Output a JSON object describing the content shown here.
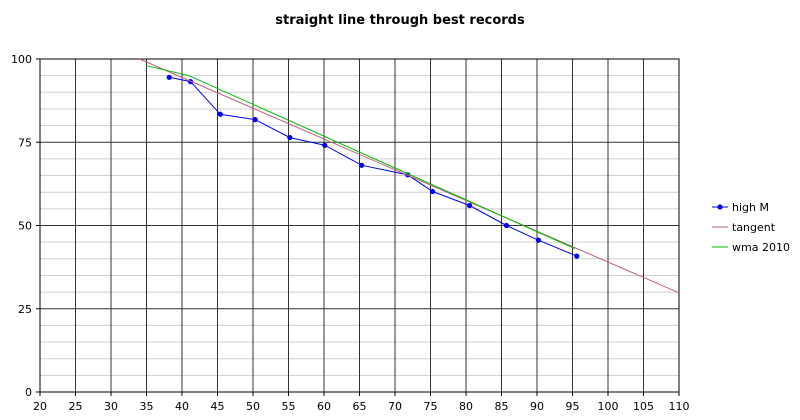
{
  "chart_data": {
    "type": "line",
    "title": "straight line through best records",
    "xlabel": "",
    "ylabel": "",
    "xlim": [
      20,
      110
    ],
    "ylim": [
      0,
      100
    ],
    "x_ticks": [
      20,
      25,
      30,
      35,
      40,
      45,
      50,
      55,
      60,
      65,
      70,
      75,
      80,
      85,
      90,
      95,
      100,
      105,
      110
    ],
    "y_ticks": [
      0,
      25,
      50,
      75,
      100
    ],
    "y_minor_step": 5,
    "grid": true,
    "legend_position": "right",
    "series": [
      {
        "name": "high M",
        "color": "#0000ee",
        "marker": "circle",
        "points": [
          {
            "x": 38.2,
            "y": 94.5
          },
          {
            "x": 41.2,
            "y": 93.2
          },
          {
            "x": 45.4,
            "y": 83.4
          },
          {
            "x": 50.3,
            "y": 81.8
          },
          {
            "x": 55.2,
            "y": 76.4
          },
          {
            "x": 60.1,
            "y": 74.1
          },
          {
            "x": 65.3,
            "y": 68.1
          },
          {
            "x": 71.8,
            "y": 65.2
          },
          {
            "x": 75.3,
            "y": 60.2
          },
          {
            "x": 80.5,
            "y": 56.0
          },
          {
            "x": 85.7,
            "y": 50.0
          },
          {
            "x": 90.2,
            "y": 45.6
          },
          {
            "x": 95.6,
            "y": 40.8
          }
        ]
      },
      {
        "name": "tangent",
        "color": "#c06080",
        "marker": "none",
        "points": [
          {
            "x": 34.0,
            "y": 100.0
          },
          {
            "x": 110.0,
            "y": 29.8
          }
        ]
      },
      {
        "name": "wma 2010",
        "color": "#00bb00",
        "marker": "none",
        "points": [
          {
            "x": 35.0,
            "y": 98.0
          },
          {
            "x": 41.0,
            "y": 95.0
          },
          {
            "x": 95.3,
            "y": 43.1
          }
        ]
      }
    ]
  }
}
